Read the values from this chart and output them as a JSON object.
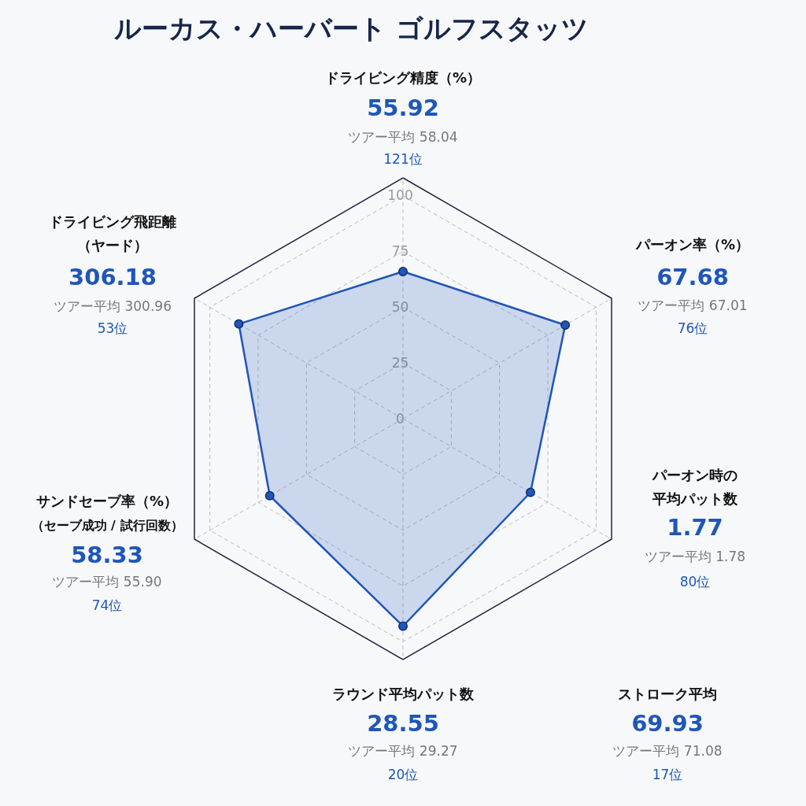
{
  "chart_data": {
    "type": "radar",
    "title": "ルーカス・ハーバート ゴルフスタッツ",
    "categories": [
      "ドライビング精度（%）",
      "パーオン率（%）",
      "パーオン時の平均パット数",
      "ラウンド平均パット数",
      "サンドセーブ率（%）",
      "ドライビング飛距離（ヤード）"
    ],
    "series": [
      {
        "color": "#1f56b8",
        "values": [
          66,
          84,
          66,
          93,
          69,
          85
        ]
      }
    ],
    "value_labels": [
      "55.92",
      "67.68",
      "1.77",
      "28.55",
      "58.33",
      "306.18"
    ],
    "ylim": [
      0,
      108
    ],
    "yticks": [
      0,
      25,
      50,
      75,
      100
    ],
    "grid": true,
    "marker": "circle",
    "annotations": [
      "ツアー平均  58.04",
      "121位",
      "ツアー平均  67.01",
      "76位",
      "ツアー平均  1.78",
      "80位",
      "ツアー平均  29.27",
      "20位",
      "ツアー平均  55.90",
      "74位",
      "ツアー平均  300.96",
      "53位",
      "ストローク平均",
      "69.93",
      "ツアー平均  71.08",
      "17位",
      "（セーブ成功 / 試行回数）"
    ]
  }
}
